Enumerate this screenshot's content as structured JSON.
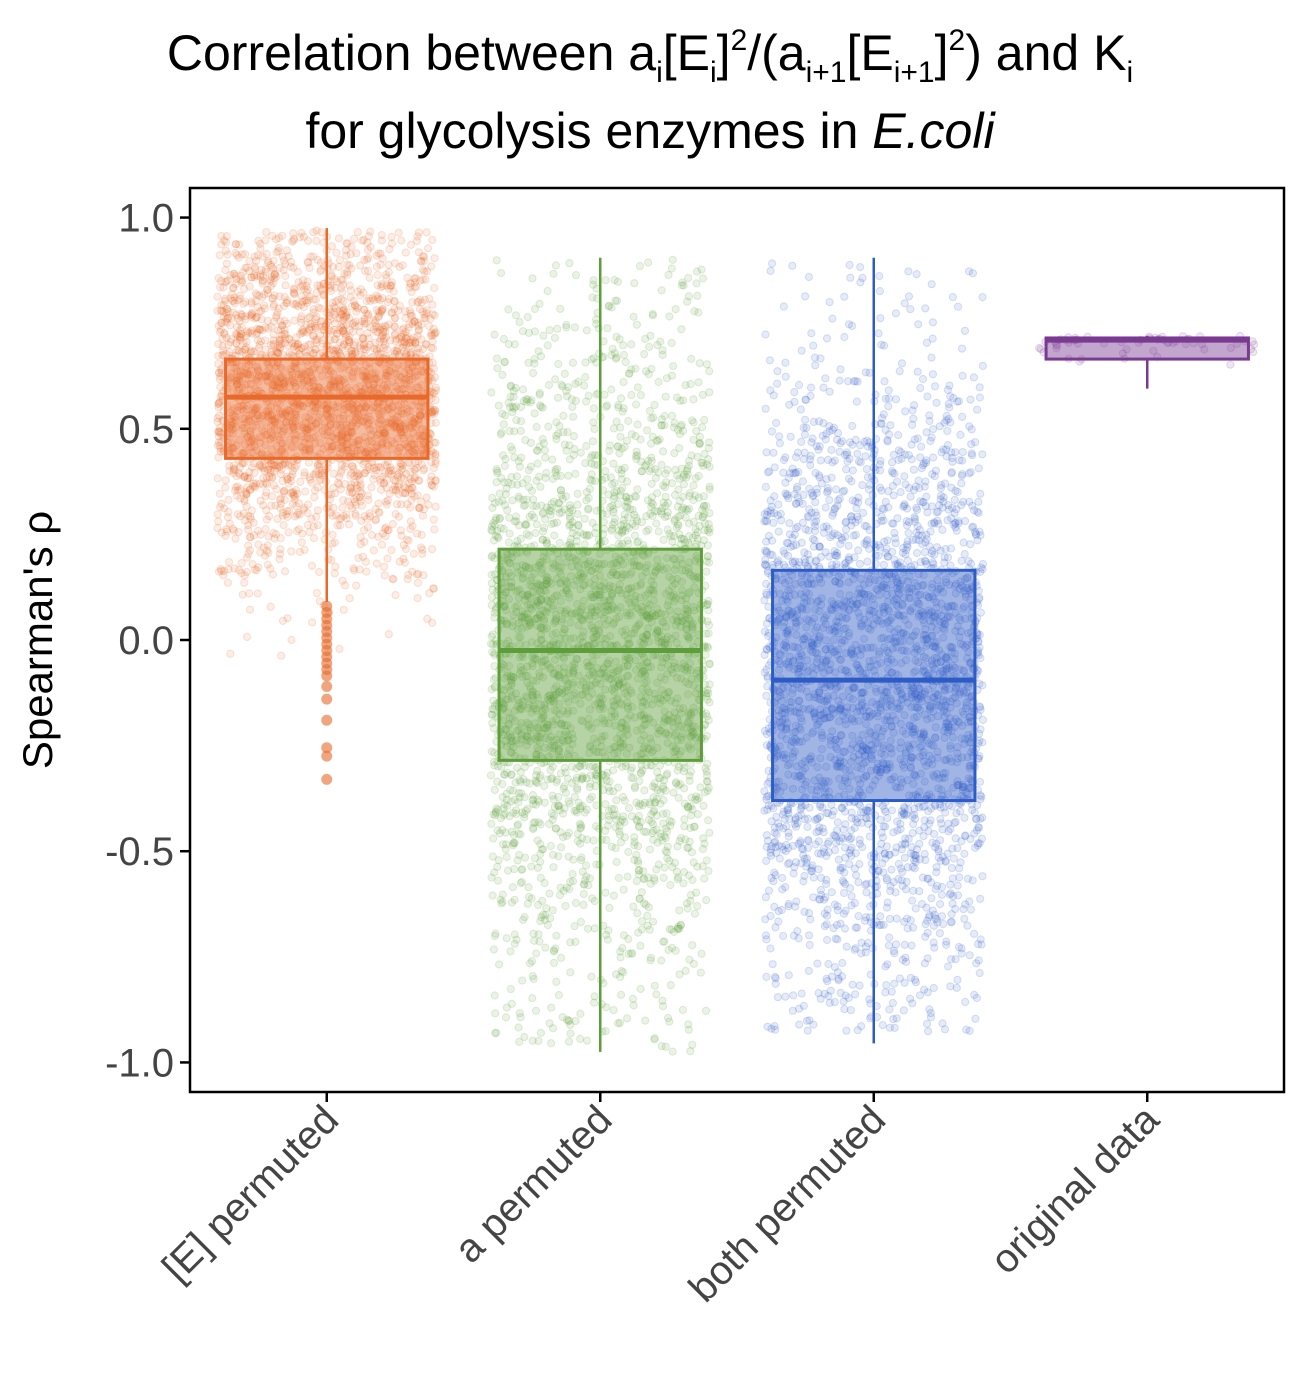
{
  "title": {
    "line1": {
      "part1": "Correlation between a",
      "sub_i": "i",
      "part2": "[E",
      "sub_i2": "i",
      "part3": "]",
      "sup2": "2",
      "part4": "/(a",
      "sub_i1": "i+1",
      "part5": "[E",
      "sub_i1b": "i+1",
      "part6": "]",
      "sup2b": "2",
      "part7": ") and K",
      "sub_i3": "i"
    },
    "line2": {
      "prefix": "for glycolysis enzymes in ",
      "organism": "E.coli"
    }
  },
  "chart_data": {
    "type": "boxplot",
    "ylabel": "Spearman's  ρ",
    "ylim": [
      -1.07,
      1.07
    ],
    "yticks": [
      1.0,
      0.5,
      0.0,
      -0.5,
      -1.0
    ],
    "ytick_labels": [
      "1.0",
      "0.5",
      "0.0",
      "-0.5",
      "-1.0"
    ],
    "grid": false,
    "legend": "none",
    "categories": [
      "[E] permuted",
      "a permuted",
      "both permuted",
      "original data"
    ],
    "series": [
      {
        "color": "#E8692A",
        "box": {
          "q1": 0.43,
          "median": 0.575,
          "q3": 0.665,
          "whisker_low": 0.09,
          "whisker_high": 0.975
        },
        "jitter": {
          "min": -0.2,
          "max": 0.97,
          "count": 2600,
          "dist": "skewed-high"
        },
        "outliers": [
          0.08,
          0.065,
          0.05,
          0.035,
          0.02,
          0.005,
          -0.01,
          -0.025,
          -0.04,
          -0.055,
          -0.07,
          -0.085,
          -0.11,
          -0.14,
          -0.19,
          -0.255,
          -0.275,
          -0.33
        ]
      },
      {
        "color": "#5E9E3A",
        "box": {
          "q1": -0.285,
          "median": -0.025,
          "q3": 0.215,
          "whisker_low": -0.975,
          "whisker_high": 0.905
        },
        "jitter": {
          "min": -0.975,
          "max": 0.905,
          "count": 2800,
          "dist": "spread"
        },
        "outliers": []
      },
      {
        "color": "#2E5CC6",
        "box": {
          "q1": -0.38,
          "median": -0.095,
          "q3": 0.165,
          "whisker_low": -0.955,
          "whisker_high": 0.905
        },
        "jitter": {
          "min": -0.93,
          "max": 0.9,
          "count": 2800,
          "dist": "spread"
        },
        "outliers": []
      },
      {
        "color": "#7A3A92",
        "box": {
          "q1": 0.665,
          "median": 0.71,
          "q3": 0.715,
          "whisker_low": 0.595,
          "whisker_high": 0.72
        },
        "jitter": {
          "min": 0.6,
          "max": 0.72,
          "count": 60,
          "dist": "tight"
        },
        "outliers": []
      }
    ]
  }
}
